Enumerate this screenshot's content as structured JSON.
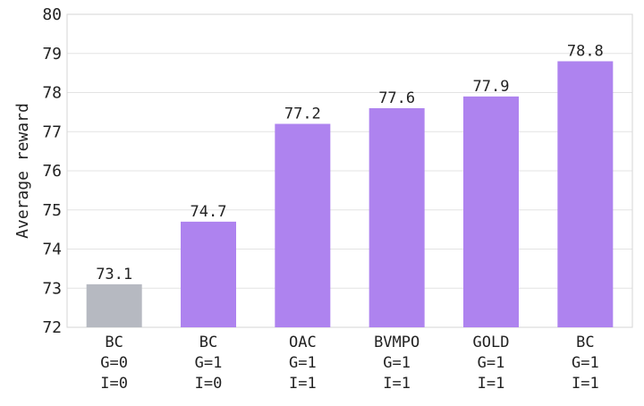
{
  "chart_data": {
    "type": "bar",
    "title": "",
    "xlabel": "",
    "ylabel": "Average reward",
    "ylim": [
      72,
      80
    ],
    "yticks": [
      "72",
      "73",
      "74",
      "75",
      "76",
      "77",
      "78",
      "79",
      "80"
    ],
    "grid": true,
    "categories": [
      [
        "BC",
        "G=0",
        "I=0"
      ],
      [
        "BC",
        "G=1",
        "I=0"
      ],
      [
        "OAC",
        "G=1",
        "I=1"
      ],
      [
        "BVMPO",
        "G=1",
        "I=1"
      ],
      [
        "GOLD",
        "G=1",
        "I=1"
      ],
      [
        "BC",
        "G=1",
        "I=1"
      ]
    ],
    "values": [
      73.1,
      74.7,
      77.2,
      77.6,
      77.9,
      78.8
    ],
    "value_labels": [
      "73.1",
      "74.7",
      "77.2",
      "77.6",
      "77.9",
      "78.8"
    ],
    "colors": [
      "#b6b9c1",
      "#ae83ef",
      "#ae83ef",
      "#ae83ef",
      "#ae83ef",
      "#ae83ef"
    ]
  }
}
